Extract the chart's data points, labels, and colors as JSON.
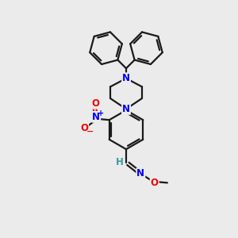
{
  "bg_color": "#ebebeb",
  "bond_color": "#1a1a1a",
  "N_color": "#0000ee",
  "O_color": "#ee0000",
  "H_color": "#3a9a9a",
  "line_width": 1.6,
  "font_size": 8.5,
  "figsize": [
    3.0,
    3.0
  ],
  "dpi": 100,
  "xlim": [
    0,
    10
  ],
  "ylim": [
    0,
    10
  ]
}
